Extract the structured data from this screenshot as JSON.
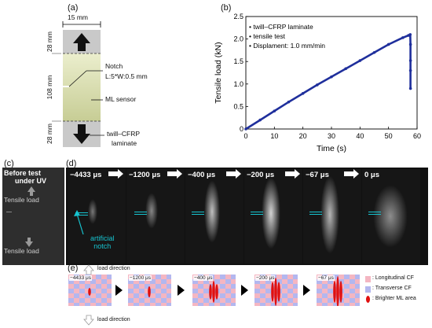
{
  "panel_a": {
    "label": "(a)",
    "width_dim": "15 mm",
    "dim_top": "28 mm",
    "dim_mid": "108 mm",
    "dim_bot": "28 mm",
    "notch_label": "Notch",
    "notch_size": "L:5*W:0.5 mm",
    "ml_sensor": "ML sensor",
    "laminate_line1": "twill–CFRP",
    "laminate_line2": "laminate"
  },
  "panel_b": {
    "label": "(b)"
  },
  "chart_data": {
    "type": "line",
    "xlabel": "Time (s)",
    "ylabel": "Tensile load (kN)",
    "xlim": [
      0,
      60
    ],
    "ylim": [
      0,
      2.5
    ],
    "xticks": [
      "0",
      "10",
      "20",
      "30",
      "40",
      "50",
      "60"
    ],
    "yticks": [
      "0",
      "0.5",
      "1.0",
      "1.5",
      "2.0",
      "2.5"
    ],
    "legend": [
      "twill–CFRP laminate",
      "tensile test",
      "Displament: 1.0 mm/min"
    ],
    "legend_placement": "top-left",
    "series": [
      {
        "color": "#1f2f9c",
        "points": [
          [
            0,
            0
          ],
          [
            5,
            0.2
          ],
          [
            10,
            0.4
          ],
          [
            15,
            0.6
          ],
          [
            20,
            0.79
          ],
          [
            25,
            0.98
          ],
          [
            30,
            1.16
          ],
          [
            35,
            1.34
          ],
          [
            40,
            1.52
          ],
          [
            45,
            1.7
          ],
          [
            50,
            1.88
          ],
          [
            55,
            2.03
          ],
          [
            57,
            2.08
          ],
          [
            57.6,
            2.1
          ],
          [
            57.7,
            1.88
          ],
          [
            57.7,
            1.52
          ],
          [
            57.7,
            1.3
          ],
          [
            57.7,
            0.9
          ]
        ]
      }
    ]
  },
  "panel_c": {
    "label": "(c)",
    "title_line1": "Before test",
    "title_line2": "under UV",
    "load_top": "Tensile load",
    "load_bottom": "Tensile load"
  },
  "panel_d": {
    "label": "(d)",
    "times": [
      "−4433 μs",
      "−1200 μs",
      "−400 μs",
      "−200 μs",
      "−67 μs",
      "0 μs"
    ],
    "annotation_line1": "artificial",
    "annotation_line2": "notch"
  },
  "panel_e": {
    "label": "(e)",
    "load_direction_top": "load direction",
    "load_direction_bottom": "load direction",
    "times": [
      "−4433 μs",
      "−1200 μs",
      "−400 μs",
      "−200 μs",
      "−67 μs"
    ],
    "legend": [
      {
        "label": ": Longitudinal CF",
        "color": "#f4b6c2"
      },
      {
        "label": ": Transverse CF",
        "color": "#b3b7ef"
      },
      {
        "label": ": Brighter ML area",
        "color": "#e01010"
      }
    ]
  }
}
